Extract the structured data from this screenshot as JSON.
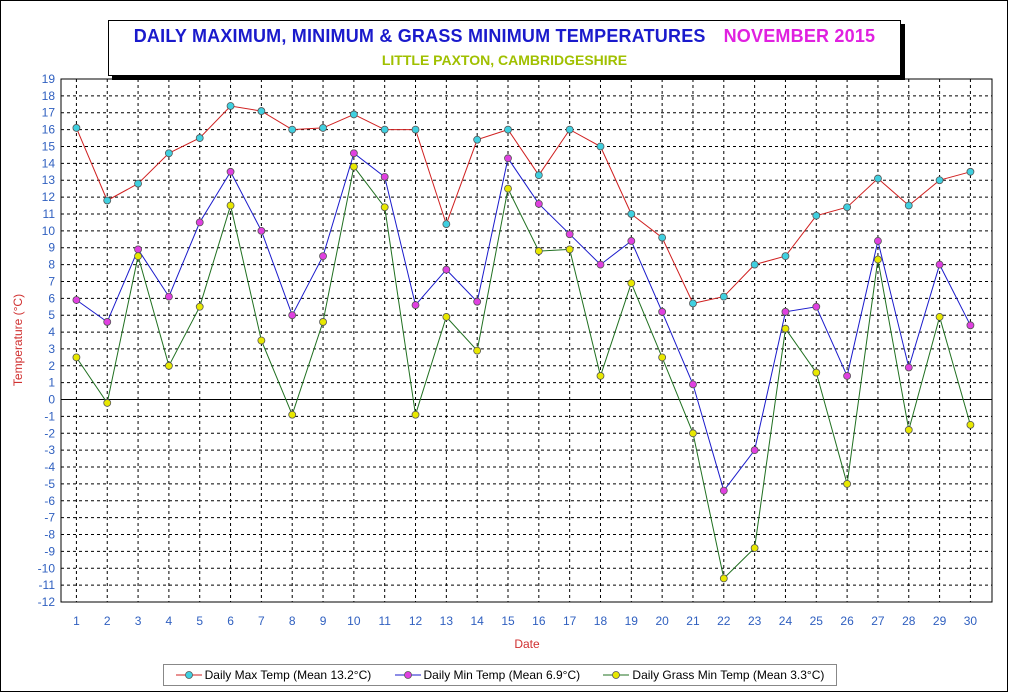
{
  "title": "DAILY MAXIMUM, MINIMUM & GRASS MINIMUM TEMPERATURES",
  "month_label": "NOVEMBER 2015",
  "subtitle": "LITTLE PAXTON, CAMBRIDGESHIRE",
  "colors": {
    "title": "#1a1acc",
    "month": "#e020e0",
    "subtitle": "#a0c000",
    "axis_labels": "#d03030",
    "tick_labels": "#3060c0"
  },
  "chart_data": {
    "type": "line",
    "xlabel": "Date",
    "ylabel": "Temperature (°C)",
    "ylim": [
      -12,
      19
    ],
    "grid": true,
    "legend_position": "bottom",
    "x": [
      1,
      2,
      3,
      4,
      5,
      6,
      7,
      8,
      9,
      10,
      11,
      12,
      13,
      14,
      15,
      16,
      17,
      18,
      19,
      20,
      21,
      22,
      23,
      24,
      25,
      26,
      27,
      28,
      29,
      30
    ],
    "series": [
      {
        "name": "Daily Max Temp (Mean 13.2°C)",
        "line_color": "#d02020",
        "marker_color": "#40d0e0",
        "values": [
          16.1,
          11.8,
          12.8,
          14.6,
          15.5,
          17.4,
          17.1,
          16.0,
          16.1,
          16.9,
          16.0,
          16.0,
          10.4,
          15.4,
          16.0,
          13.3,
          16.0,
          15.0,
          11.0,
          9.6,
          5.7,
          6.1,
          8.0,
          8.5,
          10.9,
          11.4,
          13.1,
          11.5,
          13.0,
          13.5
        ]
      },
      {
        "name": "Daily Min Temp (Mean 6.9°C)",
        "line_color": "#1a1acc",
        "marker_color": "#e040e0",
        "values": [
          5.9,
          4.6,
          8.9,
          6.1,
          10.5,
          13.5,
          10.0,
          5.0,
          8.5,
          14.6,
          13.2,
          5.6,
          7.7,
          5.8,
          14.3,
          11.6,
          9.8,
          8.0,
          9.4,
          5.2,
          0.9,
          -5.4,
          -3.0,
          5.2,
          5.5,
          1.4,
          9.4,
          1.9,
          8.0,
          4.4
        ]
      },
      {
        "name": "Daily Grass Min Temp (Mean 3.3°C)",
        "line_color": "#207020",
        "marker_color": "#e8e800",
        "values": [
          2.5,
          -0.2,
          8.5,
          2.0,
          5.5,
          11.5,
          3.5,
          -0.9,
          4.6,
          13.8,
          11.4,
          -0.9,
          4.9,
          2.9,
          12.5,
          8.8,
          8.9,
          1.4,
          6.9,
          2.5,
          -2.0,
          -10.6,
          -8.8,
          4.2,
          1.6,
          -5.0,
          8.3,
          -1.8,
          4.9,
          -1.5
        ]
      }
    ]
  }
}
